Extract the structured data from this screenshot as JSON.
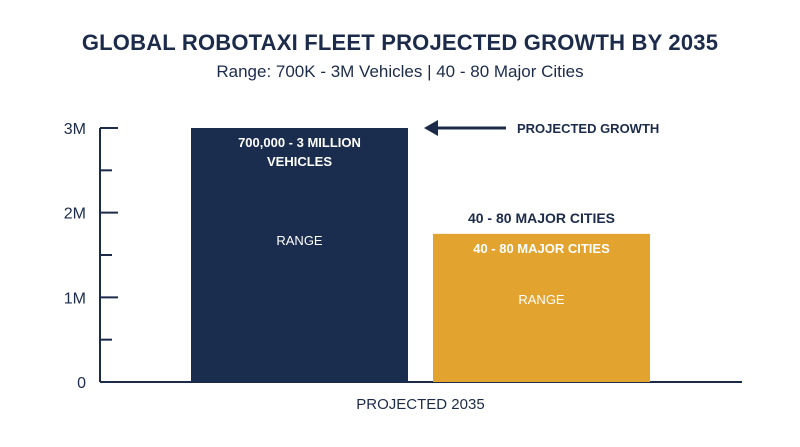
{
  "chart_data": {
    "type": "bar",
    "title": "GLOBAL ROBOTAXI FLEET PROJECTED GROWTH BY 2035",
    "subtitle": "Range: 700K - 3M Vehicles | 40 - 80 Major Cities",
    "categories": [
      "PROJECTED 2035"
    ],
    "y_ticks": [
      {
        "value": 0,
        "label": "0"
      },
      {
        "value": 1000000,
        "label": "1M"
      },
      {
        "value": 2000000,
        "label": "2M"
      },
      {
        "value": 3000000,
        "label": "3M"
      }
    ],
    "ylim": [
      0,
      3000000
    ],
    "grid": false,
    "bars": [
      {
        "value": 3000000,
        "color": "#1b2d4f",
        "label_lines": [
          "700,000 - 3 MILLION",
          "VEHICLES"
        ],
        "inner_label": "RANGE"
      },
      {
        "value": 1750000,
        "color": "#e3a32f",
        "above_label": "40 - 80 MAJOR CITIES",
        "label_lines": [
          "40 - 80 MAJOR CITIES"
        ],
        "inner_label": "RANGE"
      }
    ],
    "annotation": {
      "text": "PROJECTED GROWTH",
      "points_to_value": 3000000
    }
  },
  "colors": {
    "axis": "#1c2b4a",
    "text": "#1c2b4a"
  }
}
